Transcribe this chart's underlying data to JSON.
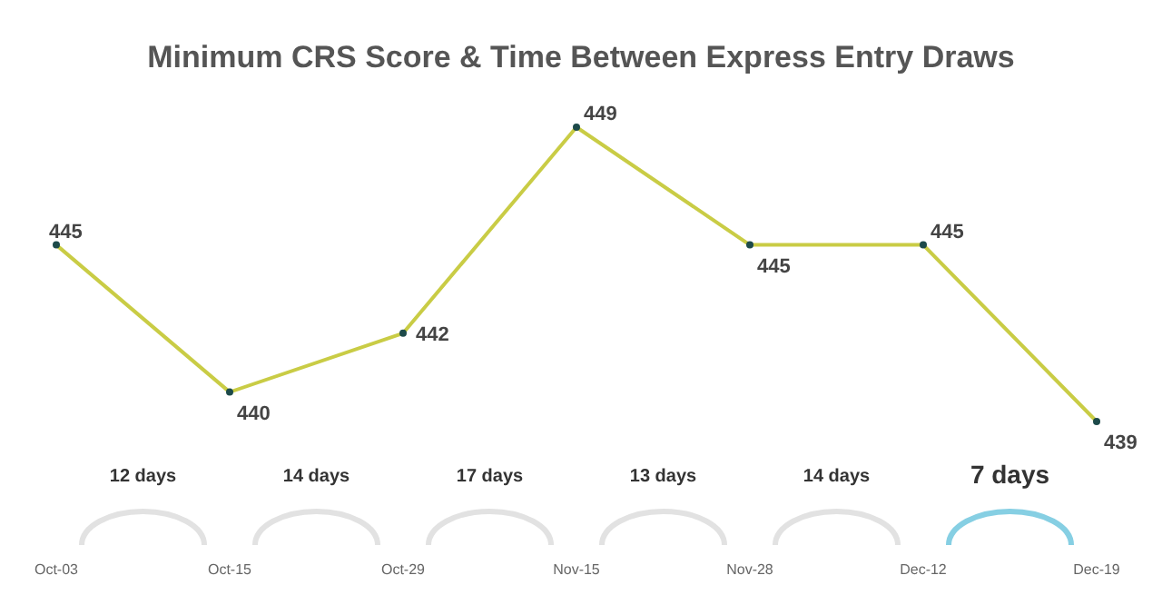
{
  "chart_data": {
    "type": "line",
    "title": "Minimum CRS Score & Time Between Express Entry Draws",
    "categories": [
      "Oct-03",
      "Oct-15",
      "Oct-29",
      "Nov-15",
      "Nov-28",
      "Dec-12",
      "Dec-19"
    ],
    "series": [
      {
        "color": "#c9cc45",
        "values": [
          445,
          440,
          442,
          449,
          445,
          445,
          439
        ]
      }
    ],
    "data_labels": true,
    "marker": "circle",
    "line_style": "solid",
    "annotations": [
      "12 days",
      "14 days",
      "17 days",
      "13 days",
      "14 days",
      "7 days"
    ]
  }
}
